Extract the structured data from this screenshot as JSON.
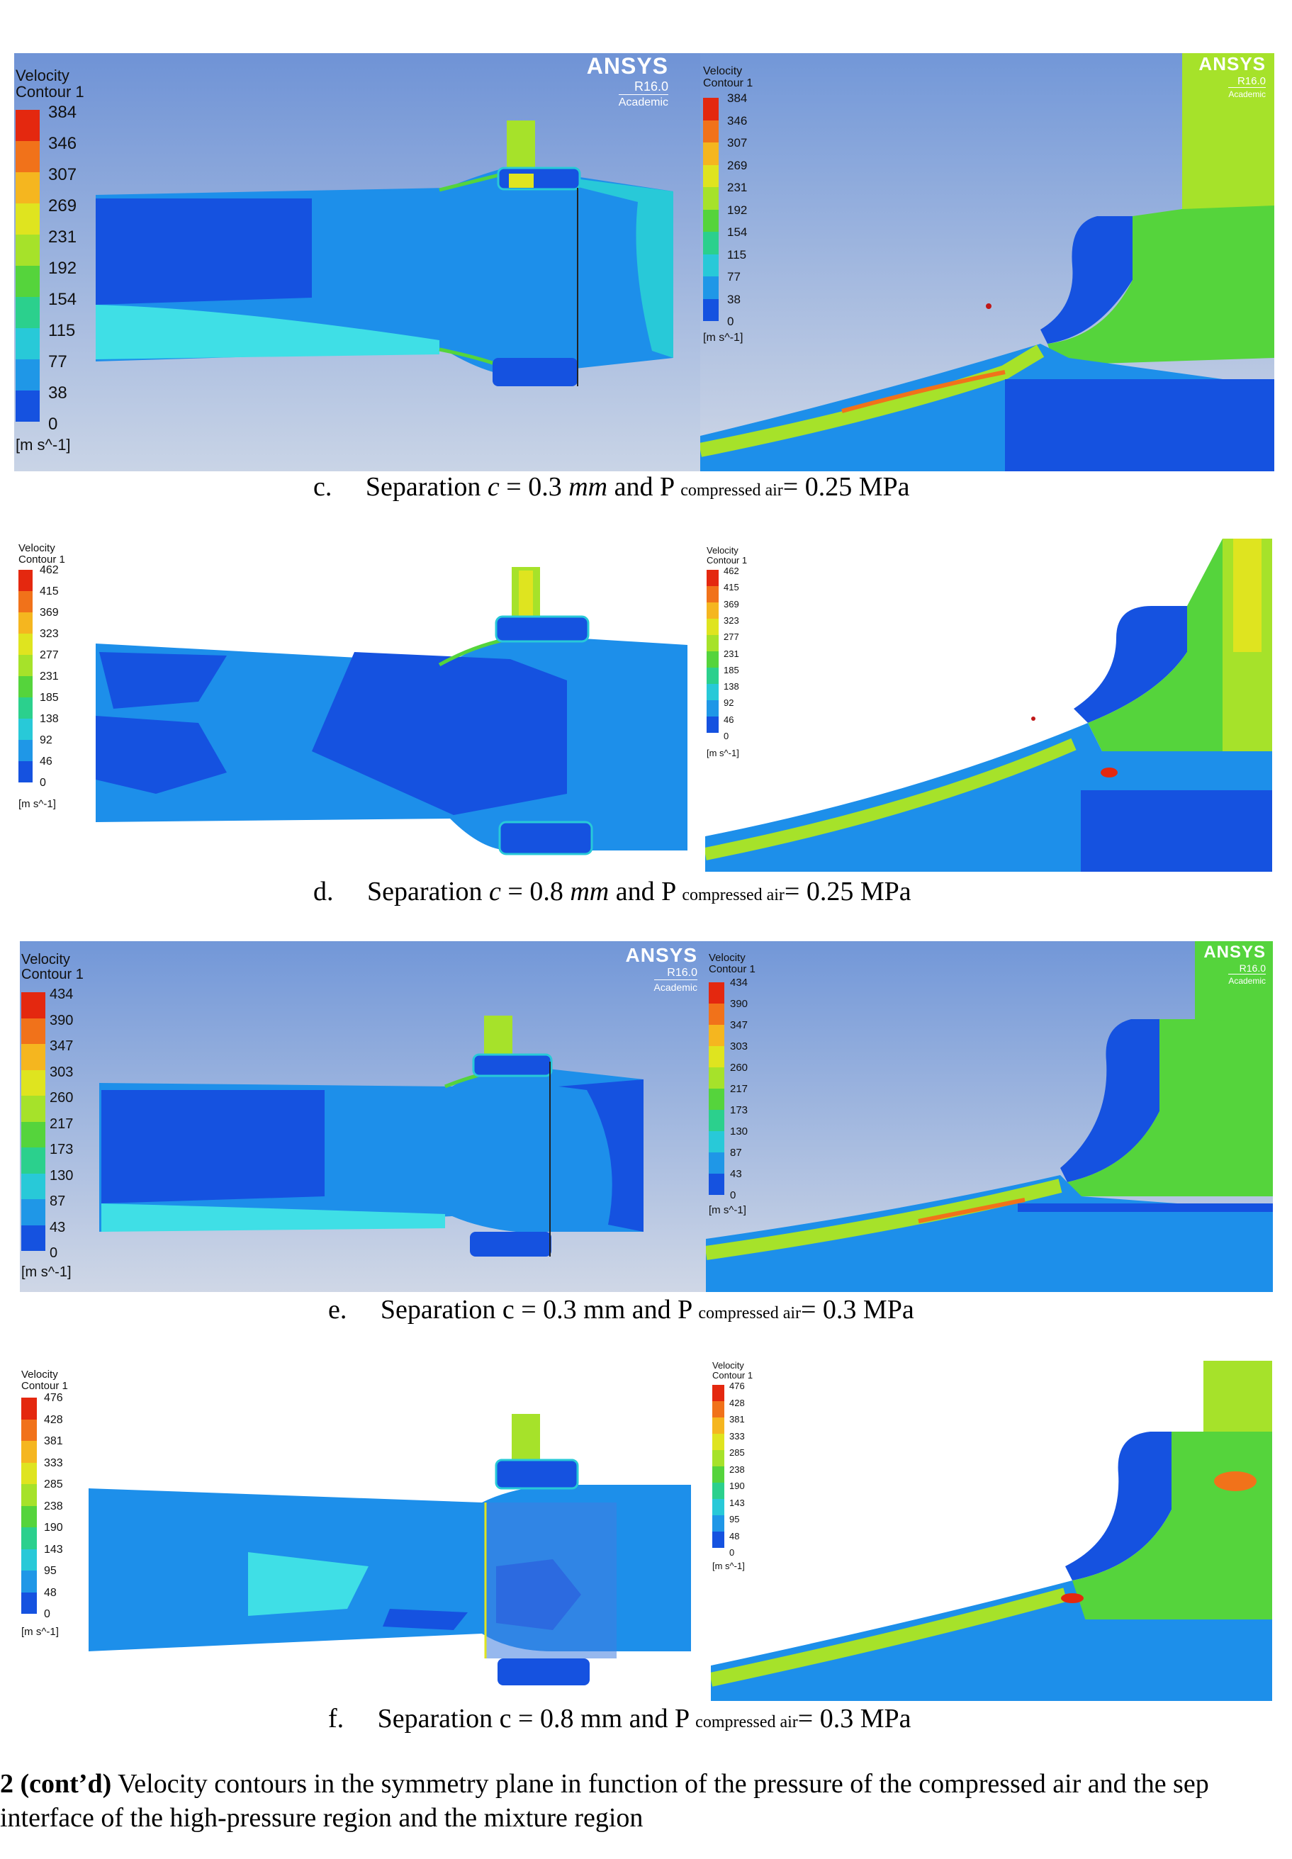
{
  "rows": [
    {
      "caption": {
        "letter": "c.",
        "text1": "Separation ",
        "var": "c",
        "equals": " = 0.3 ",
        "unit": "mm",
        "and": " and P ",
        "sub": "compressed air",
        "tail": "= 0.25 MPa"
      },
      "left": {
        "legend_title": [
          "Velocity",
          "Contour 1"
        ],
        "ticks": [
          "384",
          "346",
          "307",
          "269",
          "231",
          "192",
          "154",
          "115",
          "77",
          "38",
          "0"
        ],
        "unit": "[m s^-1]",
        "ansys": {
          "brand": "ANSYS",
          "release": "R16.0",
          "edition": "Academic"
        }
      },
      "right": {
        "legend_title": [
          "Velocity",
          "Contour 1"
        ],
        "ticks": [
          "384",
          "346",
          "307",
          "269",
          "231",
          "192",
          "154",
          "115",
          "77",
          "38",
          "0"
        ],
        "unit": "[m s^-1]",
        "ansys": {
          "brand": "ANSYS",
          "release": "R16.0",
          "edition": "Academic"
        }
      }
    },
    {
      "caption": {
        "letter": "d.",
        "text1": "Separation ",
        "var": "c",
        "equals": " = 0.8 ",
        "unit": "mm",
        "and": " and P ",
        "sub": "compressed air",
        "tail": "= 0.25 MPa"
      },
      "left": {
        "legend_title": [
          "Velocity",
          "Contour 1"
        ],
        "ticks": [
          "462",
          "415",
          "369",
          "323",
          "277",
          "231",
          "185",
          "138",
          "92",
          "46",
          "0"
        ],
        "unit": "[m s^-1]"
      },
      "right": {
        "legend_title": [
          "Velocity",
          "Contour 1"
        ],
        "ticks": [
          "462",
          "415",
          "369",
          "323",
          "277",
          "231",
          "185",
          "138",
          "92",
          "46",
          "0"
        ],
        "unit": "[m s^-1]"
      }
    },
    {
      "caption": {
        "letter": "e.",
        "text1": "Separation c = 0.3 mm",
        "and": " and P ",
        "sub": "compressed air",
        "tail": "= 0.3 MPa"
      },
      "left": {
        "legend_title": [
          "Velocity",
          "Contour 1"
        ],
        "ticks": [
          "434",
          "390",
          "347",
          "303",
          "260",
          "217",
          "173",
          "130",
          "87",
          "43",
          "0"
        ],
        "unit": "[m s^-1]",
        "ansys": {
          "brand": "ANSYS",
          "release": "R16.0",
          "edition": "Academic"
        }
      },
      "right": {
        "legend_title": [
          "Velocity",
          "Contour 1"
        ],
        "ticks": [
          "434",
          "390",
          "347",
          "303",
          "260",
          "217",
          "173",
          "130",
          "87",
          "43",
          "0"
        ],
        "unit": "[m s^-1]",
        "ansys": {
          "brand": "ANSYS",
          "release": "R16.0",
          "edition": "Academic"
        }
      }
    },
    {
      "caption": {
        "letter": "f.",
        "text1": "Separation c = 0.8 mm",
        "and": " and P ",
        "sub": "compressed air",
        "tail": "= 0.3 MPa"
      },
      "left": {
        "legend_title": [
          "Velocity",
          "Contour 1"
        ],
        "ticks": [
          "476",
          "428",
          "381",
          "333",
          "285",
          "238",
          "190",
          "143",
          "95",
          "48",
          "0"
        ],
        "unit": "[m s^-1]"
      },
      "right": {
        "legend_title": [
          "Velocity",
          "Contour 1"
        ],
        "ticks": [
          "476",
          "428",
          "381",
          "333",
          "285",
          "238",
          "190",
          "143",
          "95",
          "48",
          "0"
        ],
        "unit": "[m s^-1]"
      }
    }
  ],
  "figure_caption": {
    "label": "2 (cont’d)",
    "line1": " Velocity contours in the symmetry plane in function of the pressure of the compressed air and the sep",
    "line2": " interface of the high-pressure region and the mixture region"
  },
  "colors": {
    "scale": [
      "#e4280f",
      "#f1721a",
      "#f5b61f",
      "#dfe41f",
      "#a6e22a",
      "#55d43c",
      "#2bd08d",
      "#28c9d8",
      "#1f97e7",
      "#1552e0"
    ],
    "background_gradient": [
      "#6f93d6",
      "#c9d4e6"
    ],
    "fluid_dark": "#1455e3",
    "fluid_mid": "#1d8fea",
    "fluid_light": "#3fdfe6"
  }
}
